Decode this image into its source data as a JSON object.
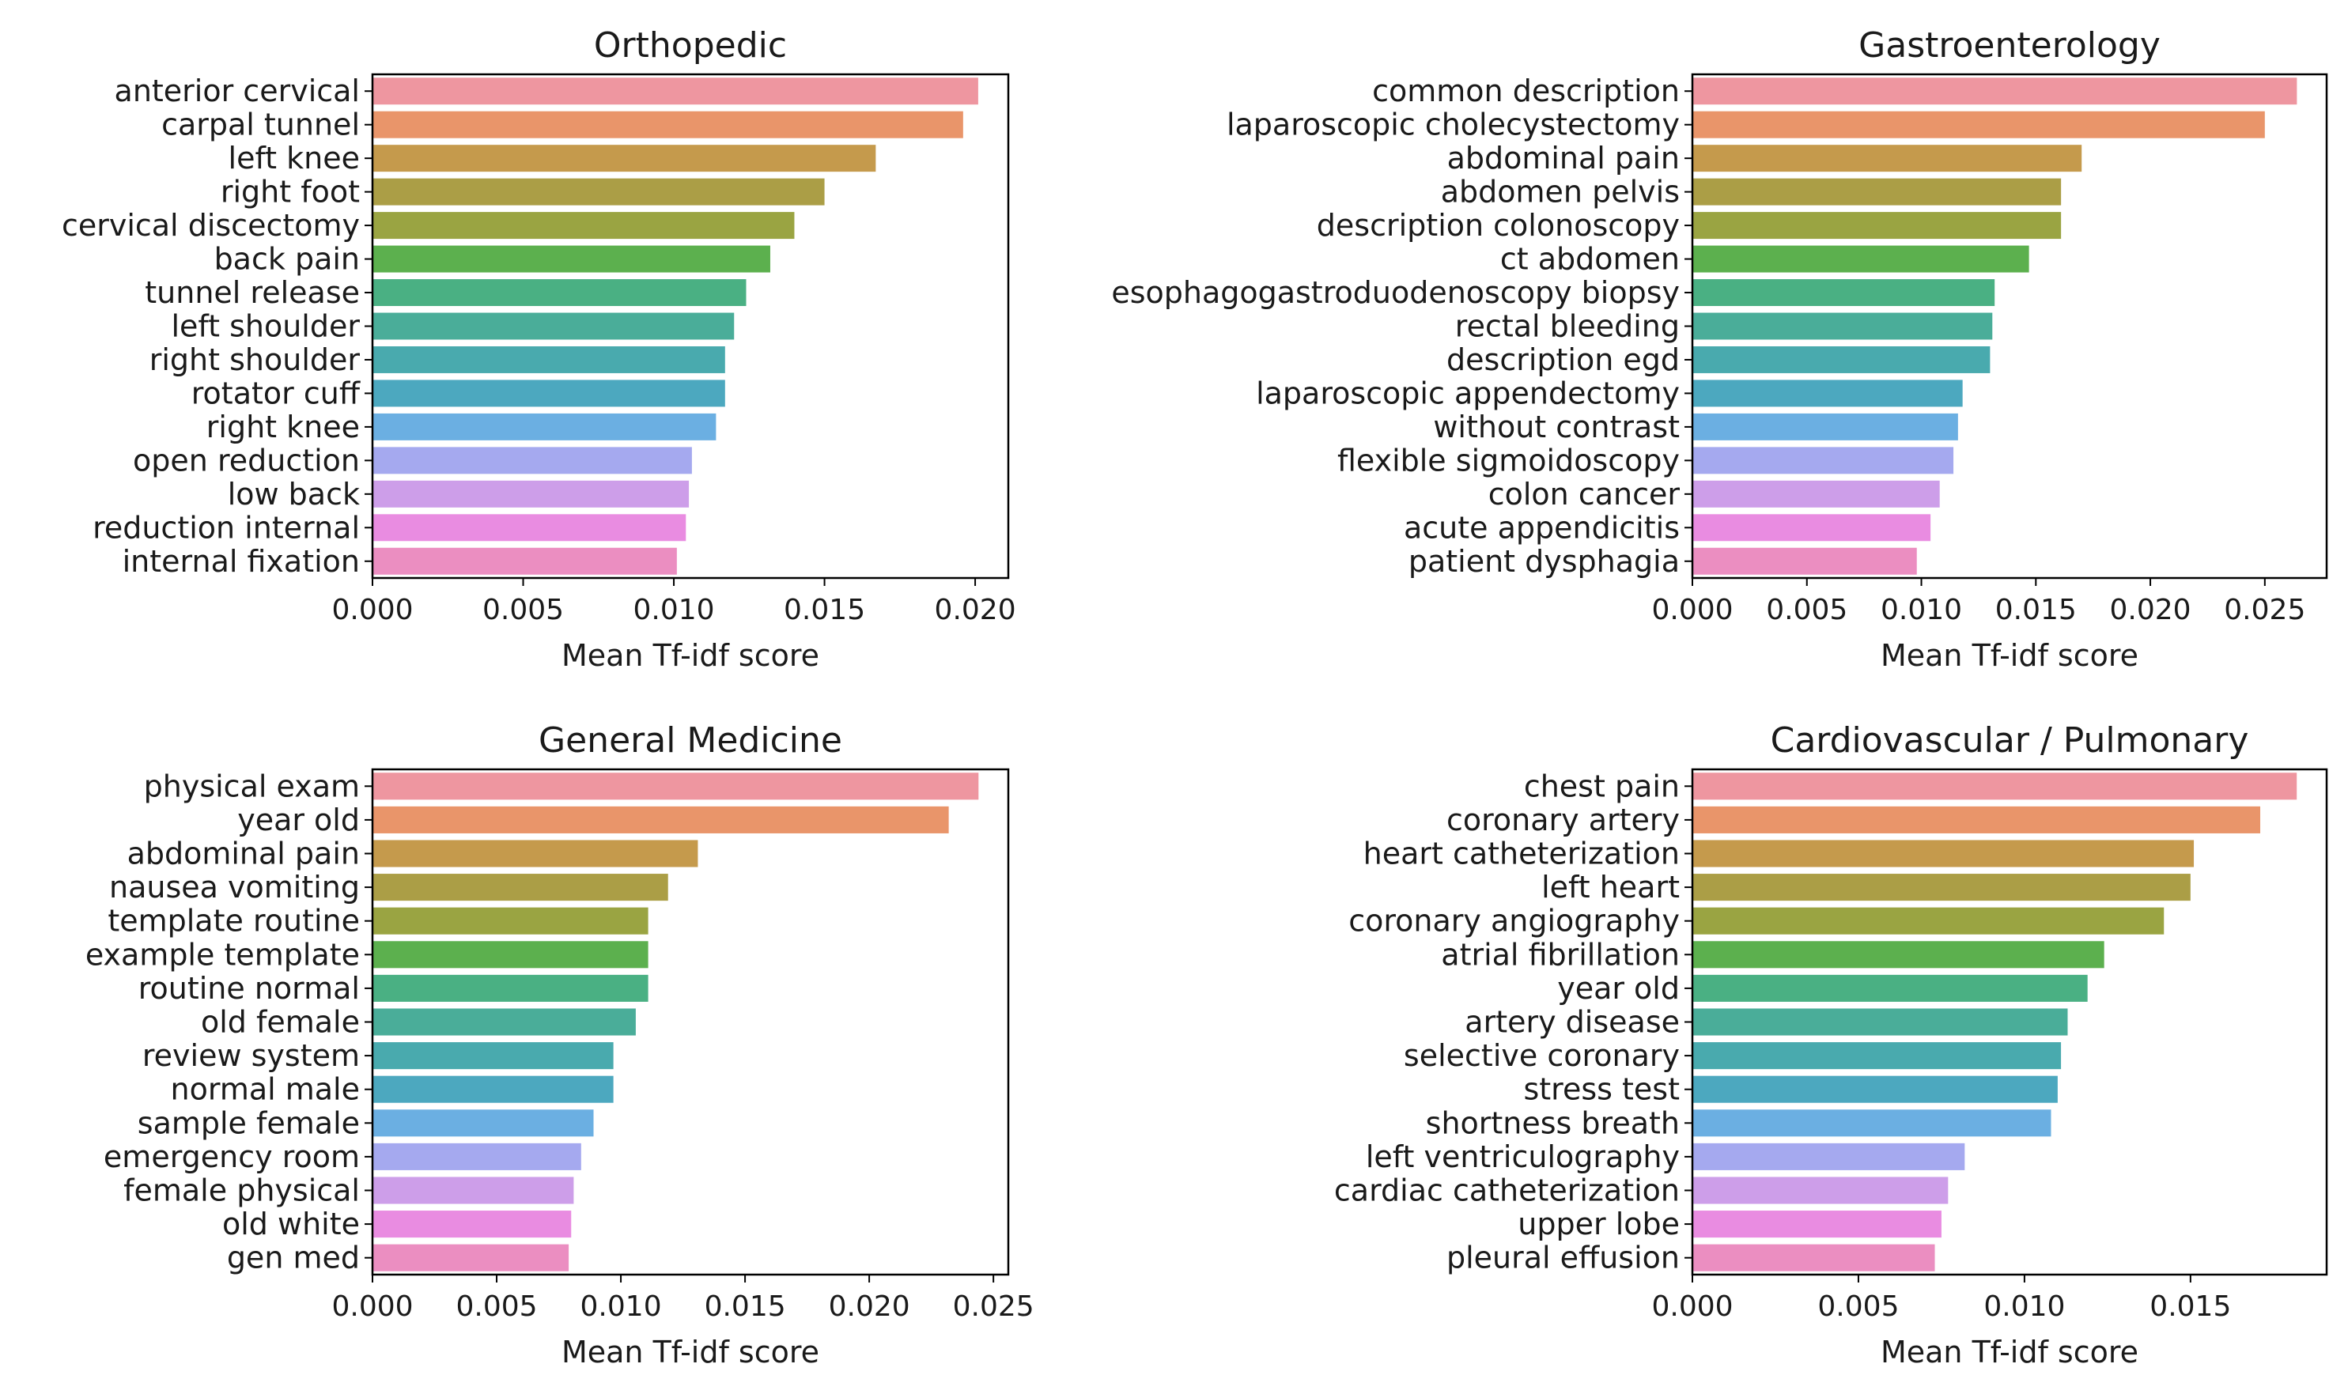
{
  "chart_data": [
    {
      "type": "bar",
      "orientation": "horizontal",
      "title": "Orthopedic",
      "xlabel": "Mean Tf-idf score",
      "ylabel": "",
      "xlim": [
        0,
        0.0211
      ],
      "xticks": [
        "0.000",
        "0.005",
        "0.010",
        "0.015",
        "0.020"
      ],
      "xtick_values": [
        0,
        0.005,
        0.01,
        0.015,
        0.02
      ],
      "categories": [
        "anterior cervical",
        "carpal tunnel",
        "left knee",
        "right foot",
        "cervical discectomy",
        "back pain",
        "tunnel release",
        "left shoulder",
        "right shoulder",
        "rotator cuff",
        "right knee",
        "open reduction",
        "low back",
        "reduction internal",
        "internal fixation"
      ],
      "values": [
        0.0201,
        0.0196,
        0.0167,
        0.015,
        0.014,
        0.0132,
        0.0124,
        0.012,
        0.0117,
        0.0117,
        0.0114,
        0.0106,
        0.0105,
        0.0104,
        0.0101
      ]
    },
    {
      "type": "bar",
      "orientation": "horizontal",
      "title": "Gastroenterology",
      "xlabel": "Mean Tf-idf score",
      "ylabel": "",
      "xlim": [
        0,
        0.0277
      ],
      "xticks": [
        "0.000",
        "0.005",
        "0.010",
        "0.015",
        "0.020",
        "0.025"
      ],
      "xtick_values": [
        0,
        0.005,
        0.01,
        0.015,
        0.02,
        0.025
      ],
      "categories": [
        "common description",
        "laparoscopic cholecystectomy",
        "abdominal pain",
        "abdomen pelvis",
        "description colonoscopy",
        "ct abdomen",
        "esophagogastroduodenoscopy biopsy",
        "rectal bleeding",
        "description egd",
        "laparoscopic appendectomy",
        "without contrast",
        "flexible sigmoidoscopy",
        "colon cancer",
        "acute appendicitis",
        "patient dysphagia"
      ],
      "values": [
        0.0264,
        0.025,
        0.017,
        0.0161,
        0.0161,
        0.0147,
        0.0132,
        0.0131,
        0.013,
        0.0118,
        0.0116,
        0.0114,
        0.0108,
        0.0104,
        0.0098
      ]
    },
    {
      "type": "bar",
      "orientation": "horizontal",
      "title": "General Medicine",
      "xlabel": "Mean Tf-idf score",
      "ylabel": "",
      "xlim": [
        0,
        0.0256
      ],
      "xticks": [
        "0.000",
        "0.005",
        "0.010",
        "0.015",
        "0.020",
        "0.025"
      ],
      "xtick_values": [
        0,
        0.005,
        0.01,
        0.015,
        0.02,
        0.025
      ],
      "categories": [
        "physical exam",
        "year old",
        "abdominal pain",
        "nausea vomiting",
        "template routine",
        "example template",
        "routine normal",
        "old female",
        "review system",
        "normal male",
        "sample female",
        "emergency room",
        "female physical",
        "old white",
        "gen med"
      ],
      "values": [
        0.0244,
        0.0232,
        0.0131,
        0.0119,
        0.0111,
        0.0111,
        0.0111,
        0.0106,
        0.0097,
        0.0097,
        0.0089,
        0.0084,
        0.0081,
        0.008,
        0.0079
      ]
    },
    {
      "type": "bar",
      "orientation": "horizontal",
      "title": "Cardiovascular / Pulmonary",
      "xlabel": "Mean Tf-idf score",
      "ylabel": "",
      "xlim": [
        0,
        0.0191
      ],
      "xticks": [
        "0.000",
        "0.005",
        "0.010",
        "0.015"
      ],
      "xtick_values": [
        0,
        0.005,
        0.01,
        0.015
      ],
      "categories": [
        "chest pain",
        "coronary artery",
        "heart catheterization",
        "left heart",
        "coronary angiography",
        "atrial fibrillation",
        "year old",
        "artery disease",
        "selective coronary",
        "stress test",
        "shortness breath",
        "left ventriculography",
        "cardiac catheterization",
        "upper lobe",
        "pleural effusion"
      ],
      "values": [
        0.0182,
        0.0171,
        0.0151,
        0.015,
        0.0142,
        0.0124,
        0.0119,
        0.0113,
        0.0111,
        0.011,
        0.0108,
        0.0082,
        0.0077,
        0.0075,
        0.0073
      ]
    }
  ],
  "palette": [
    "#ee96a0",
    "#e9956a",
    "#c59a4c",
    "#ab9e46",
    "#9aa442",
    "#5cb04e",
    "#4ab083",
    "#4aad99",
    "#49aaae",
    "#4ca8bf",
    "#6bafe2",
    "#a5a9ef",
    "#cd9ee9",
    "#e98ce1",
    "#eb8ec1"
  ]
}
